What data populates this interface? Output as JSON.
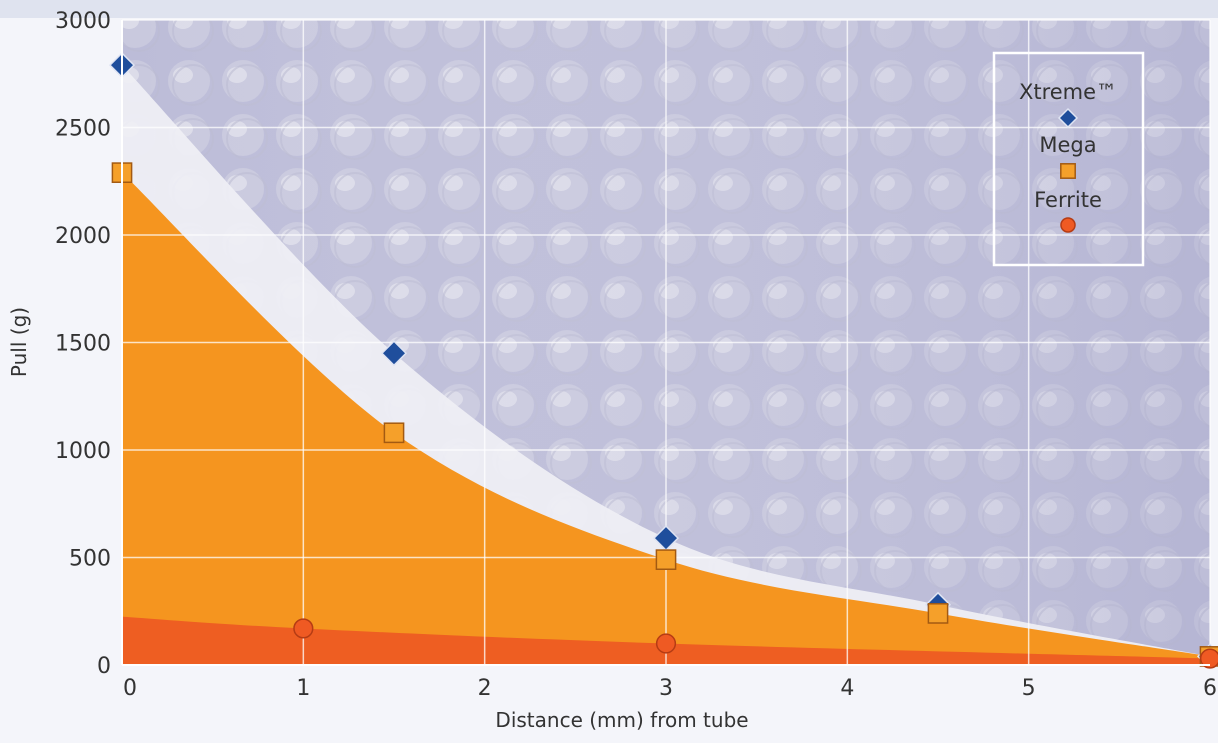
{
  "chart_data": {
    "type": "area",
    "xlabel": "Distance (mm) from tube",
    "ylabel": "Pull (g)",
    "xlim": [
      0,
      6
    ],
    "ylim": [
      0,
      3000
    ],
    "x_ticks": [
      "0",
      "1",
      "2",
      "3",
      "4",
      "5",
      "6"
    ],
    "y_ticks": [
      "0",
      "500",
      "1000",
      "1500",
      "2000",
      "2500",
      "3000"
    ],
    "grid": true,
    "legend_position": "top-right",
    "series": [
      {
        "name": "Xtreme™",
        "marker": "diamond",
        "color": "#1f4e9c",
        "fill": "#eeeef4",
        "points": [
          [
            0,
            2790
          ],
          [
            1.5,
            1450
          ],
          [
            3,
            590
          ],
          [
            4.5,
            280
          ],
          [
            6,
            40
          ]
        ]
      },
      {
        "name": "Mega",
        "marker": "square",
        "color": "#f5a02a",
        "fill": "#f5951f",
        "points": [
          [
            0,
            2290
          ],
          [
            1.5,
            1080
          ],
          [
            3,
            490
          ],
          [
            4.5,
            240
          ],
          [
            6,
            40
          ]
        ]
      },
      {
        "name": "Ferrite",
        "marker": "circle",
        "color": "#ef5a23",
        "fill": "#ee5e22",
        "points": [
          [
            1,
            170
          ],
          [
            3,
            100
          ],
          [
            6,
            30
          ]
        ]
      }
    ]
  }
}
